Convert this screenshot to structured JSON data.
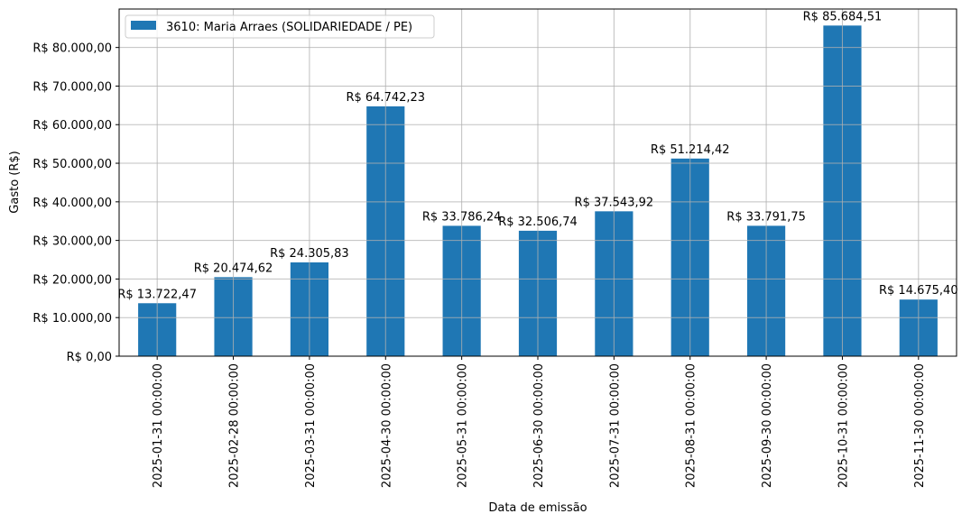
{
  "chart_data": {
    "type": "bar",
    "title": "",
    "xlabel": "Data de emissão",
    "ylabel": "Gasto (R$)",
    "ylim": [
      0,
      89968.74
    ],
    "grid": true,
    "legend_position": "top-left",
    "bar_color": "#1f77b4",
    "categories": [
      "2025-01-31 00:00:00",
      "2025-02-28 00:00:00",
      "2025-03-31 00:00:00",
      "2025-04-30 00:00:00",
      "2025-05-31 00:00:00",
      "2025-06-30 00:00:00",
      "2025-07-31 00:00:00",
      "2025-08-31 00:00:00",
      "2025-09-30 00:00:00",
      "2025-10-31 00:00:00",
      "2025-11-30 00:00:00"
    ],
    "series": [
      {
        "name": "3610: Maria Arraes (SOLIDARIEDADE / PE)",
        "values": [
          13722.47,
          20474.62,
          24305.83,
          64742.23,
          33786.24,
          32506.74,
          37543.92,
          51214.42,
          33791.75,
          85684.51,
          14675.4
        ],
        "data_labels": [
          "R$ 13.722,47",
          "R$ 20.474,62",
          "R$ 24.305,83",
          "R$ 64.742,23",
          "R$ 33.786,24",
          "R$ 32.506,74",
          "R$ 37.543,92",
          "R$ 51.214,42",
          "R$ 33.791,75",
          "R$ 85.684,51",
          "R$ 14.675,40"
        ]
      }
    ],
    "yticks": [
      0,
      10000,
      20000,
      30000,
      40000,
      50000,
      60000,
      70000,
      80000
    ],
    "ytick_labels": [
      "R$ 0,00",
      "R$ 10.000,00",
      "R$ 20.000,00",
      "R$ 30.000,00",
      "R$ 40.000,00",
      "R$ 50.000,00",
      "R$ 60.000,00",
      "R$ 70.000,00",
      "R$ 80.000,00"
    ]
  }
}
